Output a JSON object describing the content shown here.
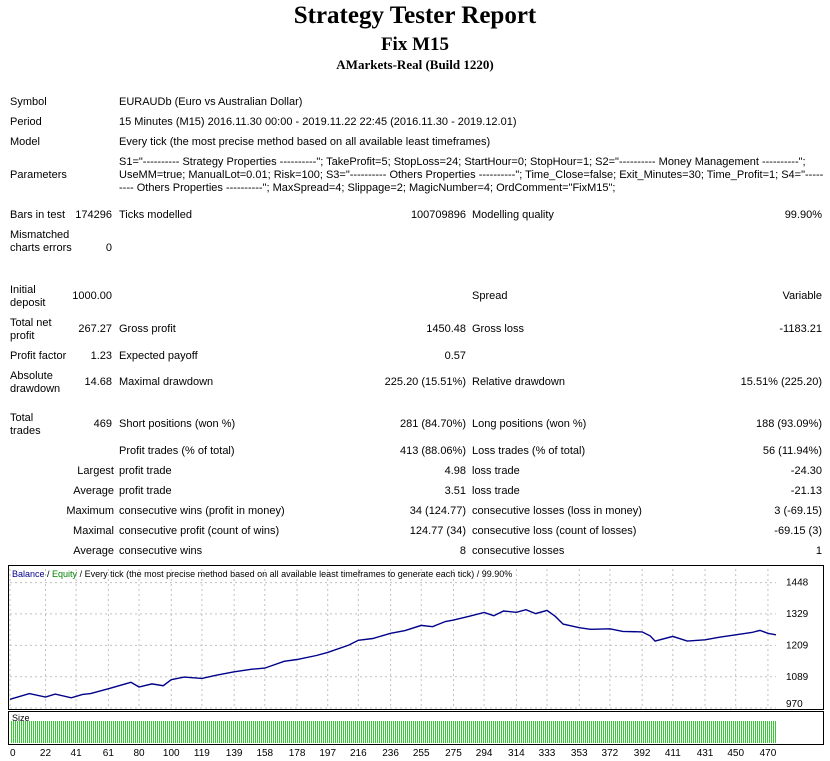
{
  "header": {
    "title": "Strategy Tester Report",
    "subtitle": "Fix M15",
    "broker": "AMarkets-Real (Build 1220)"
  },
  "info": {
    "symbol_label": "Symbol",
    "symbol_value": "EURAUDb (Euro vs Australian Dollar)",
    "period_label": "Period",
    "period_value": "15 Minutes (M15) 2016.11.30 00:00 - 2019.11.22 22:45 (2016.11.30 - 2019.12.01)",
    "model_label": "Model",
    "model_value": "Every tick (the most precise method based on all available least timeframes)",
    "params_label": "Parameters",
    "params_line1": "S1=\"---------- Strategy Properties ----------\"; TakeProfit=5; StopLoss=24; StartHour=0; StopHour=1; S2=\"---------- Money Management ----------\";",
    "params_line2": "UseMM=true; ManualLot=0.01; Risk=100; S3=\"---------- Others Properties ----------\"; Time_Close=false; Exit_Minutes=30; Time_Profit=1; S4=\"-----",
    "params_line3": "---- Others Properties ----------\"; MaxSpread=4; Slippage=2; MagicNumber=4; OrdComment=\"FixM15\";"
  },
  "stats": {
    "bars_label": "Bars in test",
    "bars_value": "174296",
    "ticks_label": "Ticks modelled",
    "ticks_value": "100709896",
    "quality_label": "Modelling quality",
    "quality_value": "99.90%",
    "mismatch_label": "Mismatched charts errors",
    "mismatch_value": "0",
    "deposit_label": "Initial deposit",
    "deposit_value": "1000.00",
    "spread_label": "Spread",
    "spread_value": "Variable",
    "netprofit_label": "Total net profit",
    "netprofit_value": "267.27",
    "grossprofit_label": "Gross profit",
    "grossprofit_value": "1450.48",
    "grossloss_label": "Gross loss",
    "grossloss_value": "-1183.21",
    "pf_label": "Profit factor",
    "pf_value": "1.23",
    "payoff_label": "Expected payoff",
    "payoff_value": "0.57",
    "absdd_label": "Absolute drawdown",
    "absdd_value": "14.68",
    "maxdd_label": "Maximal drawdown",
    "maxdd_value": "225.20 (15.51%)",
    "reldd_label": "Relative drawdown",
    "reldd_value": "15.51% (225.20)",
    "trades_label": "Total trades",
    "trades_value": "469",
    "short_label": "Short positions (won %)",
    "short_value": "281 (84.70%)",
    "long_label": "Long positions (won %)",
    "long_value": "188 (93.09%)",
    "ptrades_label": "Profit trades (% of total)",
    "ptrades_value": "413 (88.06%)",
    "ltrades_label": "Loss trades (% of total)",
    "ltrades_value": "56 (11.94%)",
    "largest_label": "Largest",
    "largest_pt_label": "profit trade",
    "largest_pt_value": "4.98",
    "largest_lt_label": "loss trade",
    "largest_lt_value": "-24.30",
    "average_label": "Average",
    "average_pt_label": "profit trade",
    "average_pt_value": "3.51",
    "average_lt_label": "loss trade",
    "average_lt_value": "-21.13",
    "maximum_label": "Maximum",
    "max_cw_label": "consecutive wins (profit in money)",
    "max_cw_value": "34 (124.77)",
    "max_cl_label": "consecutive losses (loss in money)",
    "max_cl_value": "3 (-69.15)",
    "maximal_label": "Maximal",
    "mxl_cp_label": "consecutive profit (count of wins)",
    "mxl_cp_value": "124.77 (34)",
    "mxl_cl_label": "consecutive loss (count of losses)",
    "mxl_cl_value": "-69.15 (3)",
    "avg2_label": "Average",
    "avg_cw_label": "consecutive wins",
    "avg_cw_value": "8",
    "avg_cl_label": "consecutive losses",
    "avg_cl_value": "1"
  },
  "chart_data": {
    "type": "line",
    "legend_balance": "Balance",
    "legend_sep1": " / ",
    "legend_equity": "Equity",
    "legend_rest": " / Every tick (the most precise method based on all available least timeframes to generate each tick) / 99.90%",
    "volume_label": "Size",
    "colors": {
      "balance": "#00008b",
      "equity": "#008000",
      "volume": "#32cd32",
      "grid": "#c0c0c0"
    },
    "ylim": [
      970,
      1500
    ],
    "y_ticks": [
      1448,
      1329,
      1209,
      1089,
      970
    ],
    "x_ticks": [
      0,
      22,
      41,
      61,
      80,
      100,
      119,
      139,
      158,
      178,
      197,
      216,
      236,
      255,
      275,
      294,
      314,
      333,
      353,
      372,
      392,
      411,
      431,
      450,
      470
    ],
    "xlim": [
      0,
      475
    ],
    "series": [
      {
        "key": "balance",
        "x": [
          0,
          12,
          22,
          28,
          38,
          45,
          50,
          62,
          75,
          80,
          88,
          95,
          100,
          108,
          119,
          128,
          139,
          150,
          158,
          170,
          178,
          190,
          197,
          210,
          216,
          225,
          236,
          245,
          255,
          262,
          270,
          275,
          285,
          294,
          300,
          306,
          314,
          320,
          326,
          333,
          338,
          343,
          353,
          360,
          372,
          380,
          392,
          397,
          400,
          411,
          420,
          431,
          440,
          450,
          460,
          465,
          470,
          475
        ],
        "y": [
          1003,
          1025,
          1012,
          1023,
          1009,
          1022,
          1025,
          1045,
          1068,
          1050,
          1062,
          1055,
          1078,
          1088,
          1083,
          1095,
          1108,
          1118,
          1122,
          1148,
          1155,
          1170,
          1182,
          1210,
          1228,
          1235,
          1255,
          1265,
          1285,
          1280,
          1300,
          1305,
          1320,
          1334,
          1322,
          1340,
          1335,
          1345,
          1330,
          1342,
          1320,
          1290,
          1276,
          1270,
          1272,
          1262,
          1260,
          1245,
          1225,
          1243,
          1225,
          1230,
          1240,
          1249,
          1258,
          1266,
          1255,
          1249
        ]
      }
    ]
  }
}
